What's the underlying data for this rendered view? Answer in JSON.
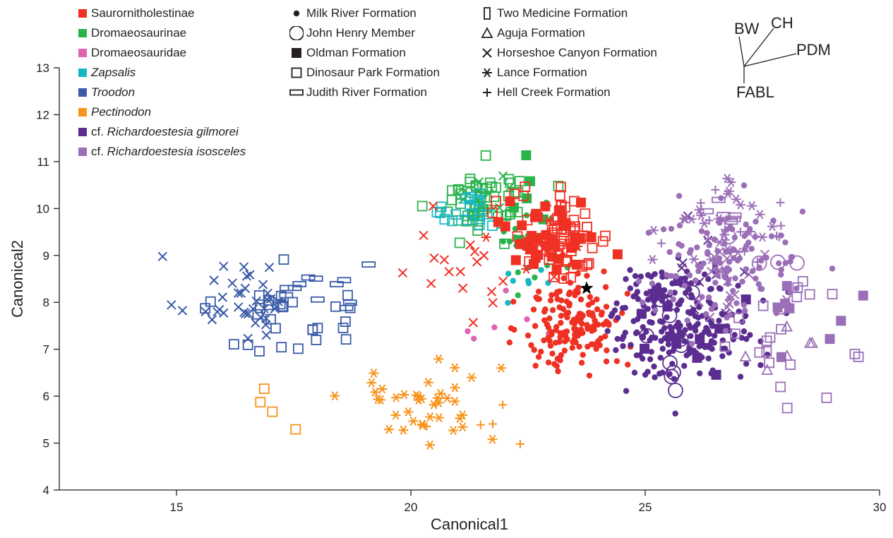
{
  "chart_data": {
    "type": "scatter",
    "xlabel": "Canonical1",
    "ylabel": "Canonical2",
    "xlim": [
      12.5,
      30
    ],
    "ylim": [
      4,
      13
    ],
    "xticks": [
      15,
      20,
      25,
      30
    ],
    "yticks": [
      4,
      5,
      6,
      7,
      8,
      9,
      10,
      11,
      12,
      13
    ],
    "grid": false,
    "legend_position": "top",
    "taxa_legend": [
      {
        "name": "Saurornitholestinae",
        "prefix": "",
        "italic": false,
        "color": "#ef3124"
      },
      {
        "name": "Dromaeosaurinae",
        "prefix": "",
        "italic": false,
        "color": "#2bb34b"
      },
      {
        "name": "Dromaeosauridae",
        "prefix": "",
        "italic": false,
        "color": "#e064b0"
      },
      {
        "name": "Zapsalis",
        "prefix": "",
        "italic": true,
        "color": "#19b7c3"
      },
      {
        "name": "Troodon",
        "prefix": "",
        "italic": true,
        "color": "#3a5ba8"
      },
      {
        "name": "Pectinodon",
        "prefix": "",
        "italic": true,
        "color": "#f7941d"
      },
      {
        "name": "Richardoestesia gilmorei",
        "prefix": "cf. ",
        "italic": true,
        "color": "#5b2d90"
      },
      {
        "name": "Richardoestesia isosceles",
        "prefix": "cf. ",
        "italic": true,
        "color": "#9b6fb8"
      }
    ],
    "formation_legend": [
      {
        "name": "Milk River Formation",
        "marker": "dot"
      },
      {
        "name": "John Henry Member",
        "marker": "circle"
      },
      {
        "name": "Oldman Formation",
        "marker": "square-filled"
      },
      {
        "name": "Dinosaur Park Formation",
        "marker": "square"
      },
      {
        "name": "Judith River Formation",
        "marker": "rect-wide"
      },
      {
        "name": "Two Medicine Formation",
        "marker": "rect-tall"
      },
      {
        "name": "Aguja Formation",
        "marker": "triangle"
      },
      {
        "name": "Horseshoe Canyon Formation",
        "marker": "x"
      },
      {
        "name": "Lance Formation",
        "marker": "asterisk"
      },
      {
        "name": "Hell Creek Formation",
        "marker": "plus"
      }
    ],
    "biplot_labels": [
      "BW",
      "CH",
      "PDM",
      "FABL"
    ],
    "star_point": {
      "x": 23.75,
      "y": 8.3
    },
    "series": [
      {
        "taxon": "Troodon",
        "color": "#3a5ba8",
        "clusters": [
          {
            "marker": "x",
            "cx": 16.3,
            "cy": 8.1,
            "sx": 1.1,
            "sy": 0.75,
            "n": 38
          },
          {
            "marker": "square",
            "cx": 17.3,
            "cy": 7.7,
            "sx": 1.2,
            "sy": 0.8,
            "n": 30
          },
          {
            "marker": "rect-wide",
            "cx": 18.0,
            "cy": 8.3,
            "sx": 0.9,
            "sy": 0.5,
            "n": 12
          }
        ]
      },
      {
        "taxon": "Pectinodon",
        "color": "#f7941d",
        "clusters": [
          {
            "marker": "asterisk",
            "cx": 20.2,
            "cy": 5.9,
            "sx": 1.4,
            "sy": 0.75,
            "n": 40
          },
          {
            "marker": "square",
            "cx": 17.0,
            "cy": 5.6,
            "sx": 0.7,
            "sy": 0.7,
            "n": 4
          },
          {
            "marker": "plus",
            "cx": 21.5,
            "cy": 5.4,
            "sx": 0.8,
            "sy": 0.6,
            "n": 5
          }
        ]
      },
      {
        "taxon": "Dromaeosaurinae",
        "color": "#2bb34b",
        "clusters": [
          {
            "marker": "square",
            "cx": 21.6,
            "cy": 10.2,
            "sx": 0.8,
            "sy": 0.6,
            "n": 55
          },
          {
            "marker": "x",
            "cx": 21.5,
            "cy": 10.3,
            "sx": 0.6,
            "sy": 0.5,
            "n": 10
          },
          {
            "marker": "dot",
            "cx": 22.6,
            "cy": 9.3,
            "sx": 0.7,
            "sy": 0.9,
            "n": 22
          },
          {
            "marker": "square-filled",
            "cx": 22.5,
            "cy": 10.0,
            "sx": 0.5,
            "sy": 0.7,
            "n": 6
          }
        ]
      },
      {
        "taxon": "Zapsalis",
        "color": "#19b7c3",
        "clusters": [
          {
            "marker": "square",
            "cx": 21.3,
            "cy": 9.9,
            "sx": 0.5,
            "sy": 0.4,
            "n": 20
          },
          {
            "marker": "dot",
            "cx": 22.6,
            "cy": 8.4,
            "sx": 0.6,
            "sy": 0.3,
            "n": 8
          }
        ]
      },
      {
        "taxon": "Dromaeosauridae",
        "color": "#e064b0",
        "clusters": [
          {
            "marker": "dot",
            "cx": 22.0,
            "cy": 7.8,
            "sx": 1.0,
            "sy": 1.5,
            "n": 6
          }
        ]
      },
      {
        "taxon": "Saurornitholestinae",
        "color": "#ef3124",
        "clusters": [
          {
            "marker": "dot",
            "cx": 23.5,
            "cy": 7.6,
            "sx": 0.9,
            "sy": 0.9,
            "n": 160
          },
          {
            "marker": "square",
            "cx": 23.2,
            "cy": 9.4,
            "sx": 0.9,
            "sy": 0.8,
            "n": 60
          },
          {
            "marker": "square-filled",
            "cx": 23.0,
            "cy": 9.4,
            "sx": 0.8,
            "sy": 0.7,
            "n": 40
          },
          {
            "marker": "x",
            "cx": 21.0,
            "cy": 8.6,
            "sx": 1.3,
            "sy": 0.8,
            "n": 18
          },
          {
            "marker": "asterisk",
            "cx": 23.0,
            "cy": 9.4,
            "sx": 0.8,
            "sy": 0.7,
            "n": 10
          }
        ]
      },
      {
        "taxon": "Richardoestesia gilmorei",
        "color": "#5b2d90",
        "clusters": [
          {
            "marker": "dot",
            "cx": 25.8,
            "cy": 7.6,
            "sx": 1.3,
            "sy": 1.0,
            "n": 230
          },
          {
            "marker": "square-filled",
            "cx": 25.8,
            "cy": 7.5,
            "sx": 1.0,
            "sy": 0.9,
            "n": 15
          },
          {
            "marker": "circle",
            "cx": 25.6,
            "cy": 7.5,
            "sx": 0.7,
            "sy": 1.4,
            "n": 10
          },
          {
            "marker": "x",
            "cx": 26.0,
            "cy": 8.6,
            "sx": 1.0,
            "sy": 0.8,
            "n": 10
          }
        ]
      },
      {
        "taxon": "Richardoestesia isosceles",
        "color": "#9b6fb8",
        "clusters": [
          {
            "marker": "dot",
            "cx": 26.8,
            "cy": 8.8,
            "sx": 1.4,
            "sy": 1.0,
            "n": 120
          },
          {
            "marker": "asterisk",
            "cx": 26.5,
            "cy": 9.6,
            "sx": 1.2,
            "sy": 1.0,
            "n": 25
          },
          {
            "marker": "plus",
            "cx": 26.8,
            "cy": 9.6,
            "sx": 1.2,
            "sy": 0.8,
            "n": 18
          },
          {
            "marker": "square",
            "cx": 27.8,
            "cy": 7.2,
            "sx": 1.0,
            "sy": 0.9,
            "n": 22
          },
          {
            "marker": "x",
            "cx": 27.0,
            "cy": 8.5,
            "sx": 1.1,
            "sy": 1.0,
            "n": 15
          },
          {
            "marker": "rect-wide",
            "cx": 26.4,
            "cy": 9.9,
            "sx": 0.4,
            "sy": 0.2,
            "n": 6
          },
          {
            "marker": "square-filled",
            "cx": 28.3,
            "cy": 7.5,
            "sx": 1.0,
            "sy": 1.2,
            "n": 8
          },
          {
            "marker": "circle",
            "cx": 27.5,
            "cy": 9.0,
            "sx": 1.0,
            "sy": 0.6,
            "n": 4
          },
          {
            "marker": "triangle",
            "cx": 28.0,
            "cy": 7.0,
            "sx": 1.0,
            "sy": 0.6,
            "n": 6
          }
        ]
      }
    ]
  }
}
